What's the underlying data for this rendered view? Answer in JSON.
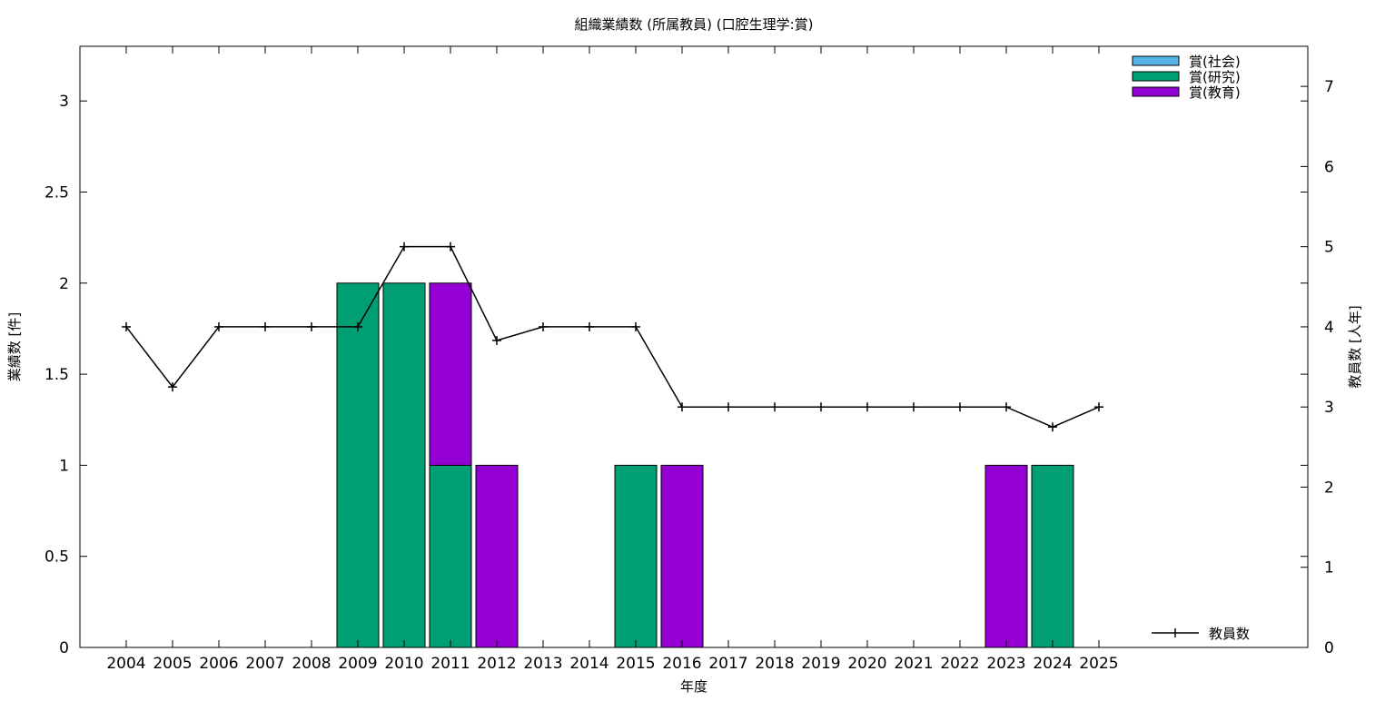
{
  "chart_data": {
    "type": "bar",
    "title": "組織業績数 (所属教員) (口腔生理学:賞)",
    "xlabel": "年度",
    "ylabel": "業績数 [件]",
    "y2label": "教員数 [人年]",
    "categories": [
      "2004",
      "2005",
      "2006",
      "2007",
      "2008",
      "2009",
      "2010",
      "2011",
      "2012",
      "2013",
      "2014",
      "2015",
      "2016",
      "2017",
      "2018",
      "2019",
      "2020",
      "2021",
      "2022",
      "2023",
      "2024",
      "2025"
    ],
    "ylim": [
      0,
      3.3
    ],
    "y_ticks": [
      "0",
      "0.5",
      "1",
      "1.5",
      "2",
      "2.5",
      "3"
    ],
    "y2lim": [
      0,
      7.5
    ],
    "y2_ticks": [
      "0",
      "1",
      "2",
      "3",
      "4",
      "5",
      "6",
      "7"
    ],
    "stacked": true,
    "grid": false,
    "legend_position": "top-right",
    "series": [
      {
        "name": "賞(社会)",
        "color": "#56b4e9",
        "values": [
          0,
          0,
          0,
          0,
          0,
          0,
          0,
          0,
          0,
          0,
          0,
          0,
          0,
          0,
          0,
          0,
          0,
          0,
          0,
          0,
          0,
          0
        ]
      },
      {
        "name": "賞(研究)",
        "color": "#009e73",
        "values": [
          0,
          0,
          0,
          0,
          0,
          2,
          2,
          1,
          0,
          0,
          0,
          1,
          0,
          0,
          0,
          0,
          0,
          0,
          0,
          0,
          1,
          0
        ]
      },
      {
        "name": "賞(教育)",
        "color": "#9400d3",
        "values": [
          0,
          0,
          0,
          0,
          0,
          0,
          0,
          1,
          1,
          0,
          0,
          0,
          1,
          0,
          0,
          0,
          0,
          0,
          0,
          1,
          0,
          0
        ]
      }
    ],
    "line_series": {
      "name": "教員数",
      "axis": "y2",
      "color": "#000000",
      "values": [
        4,
        3.25,
        4,
        4,
        4,
        4,
        5,
        5,
        3.83,
        4,
        4,
        4,
        3,
        3,
        3,
        3,
        3,
        3,
        3,
        3,
        2.75,
        3
      ]
    }
  }
}
